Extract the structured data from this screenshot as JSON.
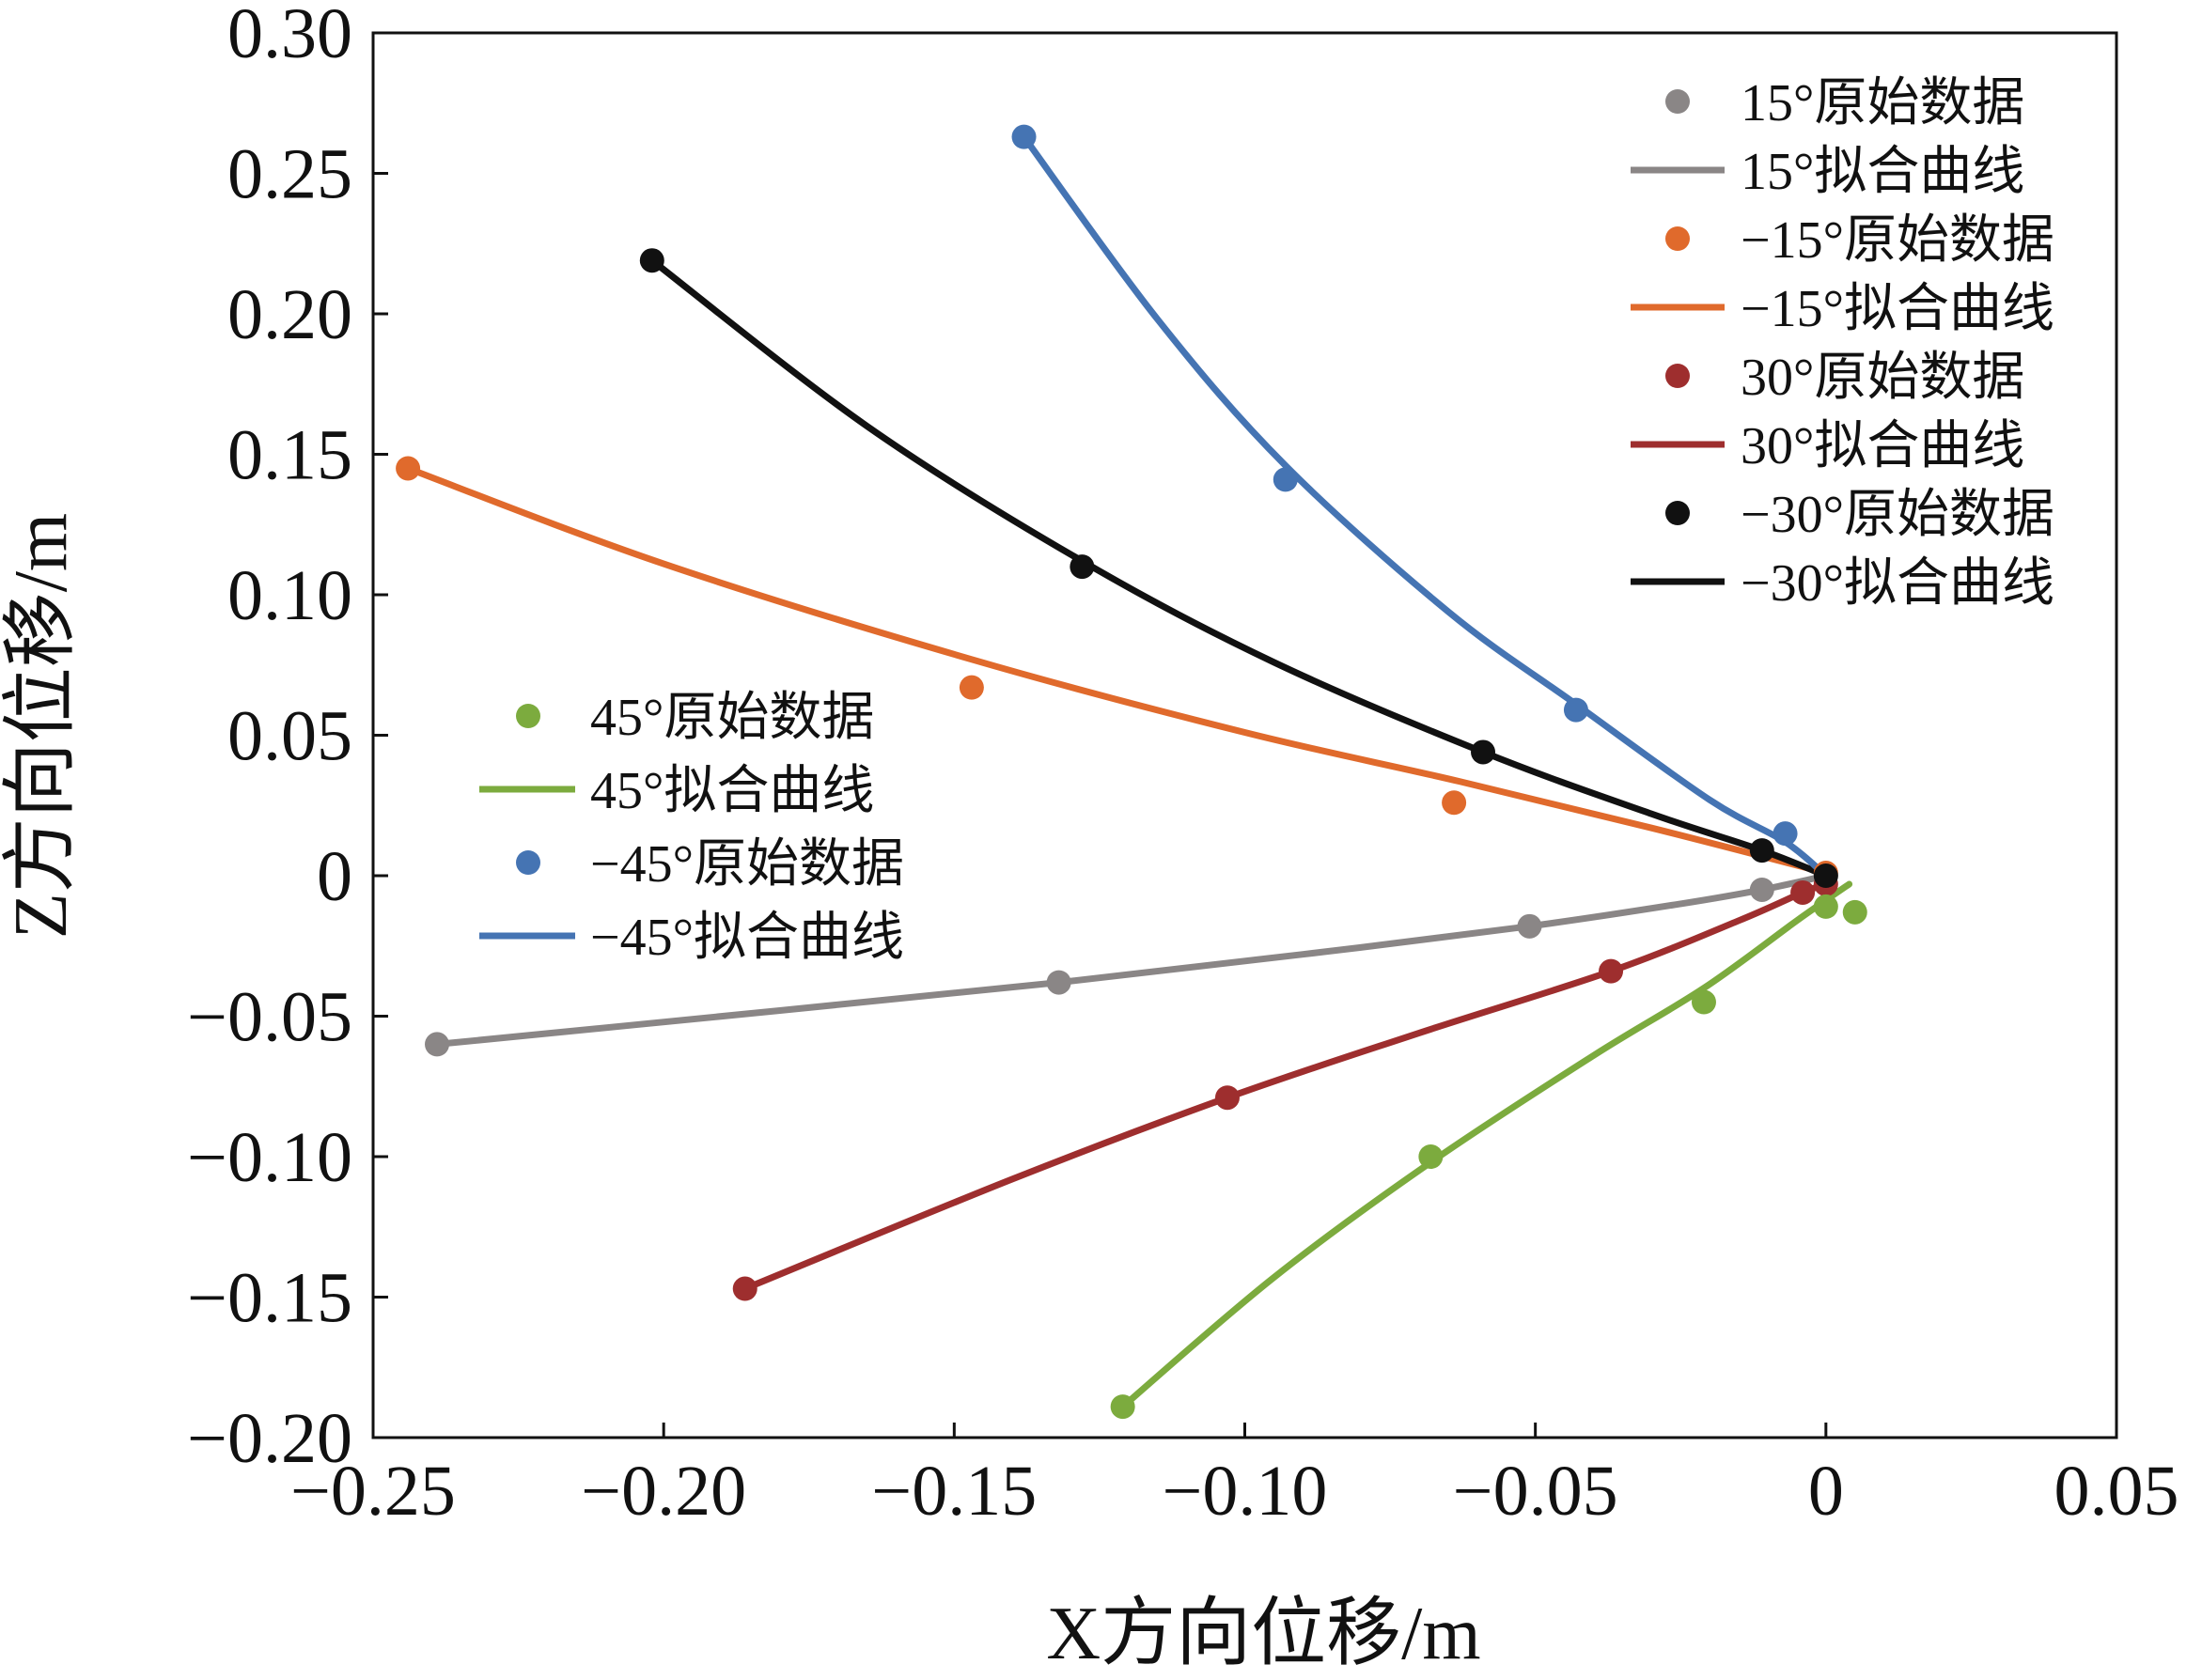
{
  "chart_data": {
    "type": "scatter",
    "title": "",
    "xlabel": "X方向位移/m",
    "ylabel": "Z方向位移/m",
    "xlim": [
      -0.25,
      0.05
    ],
    "ylim": [
      -0.2,
      0.3
    ],
    "x_ticks": [
      -0.25,
      -0.2,
      -0.15,
      -0.1,
      -0.05,
      0,
      0.05
    ],
    "x_tick_labels": [
      "−0.25",
      "−0.20",
      "−0.15",
      "−0.10",
      "−0.05",
      "0",
      "0.05"
    ],
    "y_ticks": [
      -0.2,
      -0.15,
      -0.1,
      -0.05,
      0,
      0.05,
      0.1,
      0.15,
      0.2,
      0.25,
      0.3
    ],
    "y_tick_labels": [
      "−0.20",
      "−0.15",
      "−0.10",
      "−0.05",
      "0",
      "0.05",
      "0.10",
      "0.15",
      "0.20",
      "0.25",
      "0.30"
    ],
    "grid": false,
    "legend_placement": [
      "top-right",
      "middle-left"
    ],
    "series": [
      {
        "key": "p15",
        "legend_group": "right",
        "color": "#8a8686",
        "points_name": "15°原始数据",
        "curve_name": "15°拟合曲线",
        "points": [
          [
            -0.239,
            -0.06
          ],
          [
            -0.132,
            -0.038
          ],
          [
            -0.051,
            -0.018
          ],
          [
            -0.011,
            -0.005
          ],
          [
            0,
            0
          ]
        ],
        "curve": [
          [
            -0.239,
            -0.06
          ],
          [
            -0.18,
            -0.048
          ],
          [
            -0.132,
            -0.038
          ],
          [
            -0.09,
            -0.028
          ],
          [
            -0.051,
            -0.018
          ],
          [
            -0.025,
            -0.01
          ],
          [
            -0.011,
            -0.005
          ],
          [
            0,
            0
          ]
        ]
      },
      {
        "key": "n15",
        "legend_group": "right",
        "color": "#e06a2c",
        "points_name": "−15°原始数据",
        "curve_name": "−15°拟合曲线",
        "points": [
          [
            -0.244,
            0.145
          ],
          [
            -0.147,
            0.067
          ],
          [
            -0.064,
            0.026
          ],
          [
            0,
            0.001
          ]
        ],
        "curve": [
          [
            -0.244,
            0.145
          ],
          [
            -0.2,
            0.111
          ],
          [
            -0.147,
            0.077
          ],
          [
            -0.1,
            0.051
          ],
          [
            -0.064,
            0.034
          ],
          [
            -0.03,
            0.017
          ],
          [
            0,
            0.001
          ]
        ]
      },
      {
        "key": "p30",
        "legend_group": "right",
        "color": "#9e2e2e",
        "points_name": "30°原始数据",
        "curve_name": "30°拟合曲线",
        "points": [
          [
            -0.186,
            -0.147
          ],
          [
            -0.103,
            -0.079
          ],
          [
            -0.037,
            -0.034
          ],
          [
            -0.004,
            -0.006
          ],
          [
            0,
            -0.003
          ]
        ],
        "curve": [
          [
            -0.186,
            -0.147
          ],
          [
            -0.14,
            -0.108
          ],
          [
            -0.103,
            -0.079
          ],
          [
            -0.07,
            -0.056
          ],
          [
            -0.037,
            -0.034
          ],
          [
            -0.015,
            -0.016
          ],
          [
            -0.004,
            -0.006
          ],
          [
            0,
            -0.003
          ]
        ]
      },
      {
        "key": "n30",
        "legend_group": "right",
        "color": "#111111",
        "points_name": "−30°原始数据",
        "curve_name": "−30°拟合曲线",
        "points": [
          [
            -0.202,
            0.219
          ],
          [
            -0.128,
            0.11
          ],
          [
            -0.059,
            0.044
          ],
          [
            -0.011,
            0.009
          ],
          [
            0,
            0
          ]
        ],
        "curve": [
          [
            -0.202,
            0.219
          ],
          [
            -0.165,
            0.16
          ],
          [
            -0.128,
            0.112
          ],
          [
            -0.095,
            0.076
          ],
          [
            -0.059,
            0.044
          ],
          [
            -0.03,
            0.022
          ],
          [
            -0.011,
            0.009
          ],
          [
            0,
            0
          ]
        ]
      },
      {
        "key": "p45",
        "legend_group": "left",
        "color": "#7cab3e",
        "points_name": "45°原始数据",
        "curve_name": "45°拟合曲线",
        "points": [
          [
            -0.121,
            -0.189
          ],
          [
            -0.068,
            -0.1
          ],
          [
            -0.021,
            -0.045
          ],
          [
            0,
            -0.011
          ],
          [
            0.005,
            -0.013
          ]
        ],
        "curve": [
          [
            -0.121,
            -0.189
          ],
          [
            -0.095,
            -0.143
          ],
          [
            -0.068,
            -0.102
          ],
          [
            -0.04,
            -0.064
          ],
          [
            -0.021,
            -0.04
          ],
          [
            -0.005,
            -0.016
          ],
          [
            0.004,
            -0.003
          ]
        ]
      },
      {
        "key": "n45",
        "legend_group": "left",
        "color": "#4574b3",
        "points_name": "−45°原始数据",
        "curve_name": "−45°拟合曲线",
        "points": [
          [
            -0.138,
            0.263
          ],
          [
            -0.093,
            0.141
          ],
          [
            -0.043,
            0.059
          ],
          [
            -0.007,
            0.015
          ]
        ],
        "curve": [
          [
            -0.138,
            0.263
          ],
          [
            -0.115,
            0.198
          ],
          [
            -0.093,
            0.146
          ],
          [
            -0.065,
            0.094
          ],
          [
            -0.043,
            0.061
          ],
          [
            -0.02,
            0.027
          ],
          [
            -0.007,
            0.012
          ],
          [
            0,
            0
          ]
        ]
      }
    ]
  }
}
